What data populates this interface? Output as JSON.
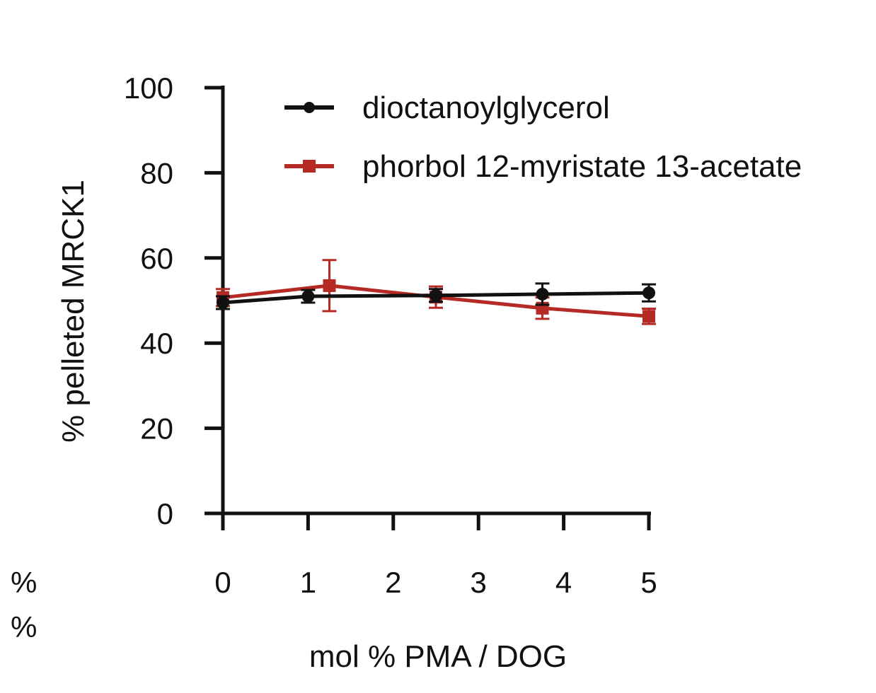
{
  "chart_data": {
    "type": "line",
    "title": "",
    "xlabel": "mol % PMA / DOG",
    "ylabel": "% pelleted MRCK1",
    "xlim": [
      0,
      5
    ],
    "ylim": [
      0,
      100
    ],
    "xticks": [
      0,
      1,
      2,
      3,
      4,
      5
    ],
    "yticks": [
      0,
      20,
      40,
      60,
      80,
      100
    ],
    "grid": false,
    "legend_position": "top-right",
    "extra_labels": [
      "%",
      "%"
    ],
    "series": [
      {
        "name": "dioctanoylglycerol",
        "color": "#111111",
        "marker": "circle",
        "x": [
          0,
          1,
          2.5,
          3.75,
          5
        ],
        "y": [
          49.5,
          51,
          51.2,
          51.5,
          51.8
        ],
        "err": [
          1.5,
          1.5,
          1.5,
          2.5,
          2.0
        ]
      },
      {
        "name": "phorbol 12-myristate 13-acetate",
        "color": "#b52a24",
        "marker": "square",
        "x": [
          0,
          1.25,
          2.5,
          3.75,
          5
        ],
        "y": [
          50.7,
          53.5,
          50.8,
          48.2,
          46.3
        ],
        "err": [
          2.0,
          6.0,
          2.5,
          2.5,
          1.8
        ]
      }
    ]
  }
}
